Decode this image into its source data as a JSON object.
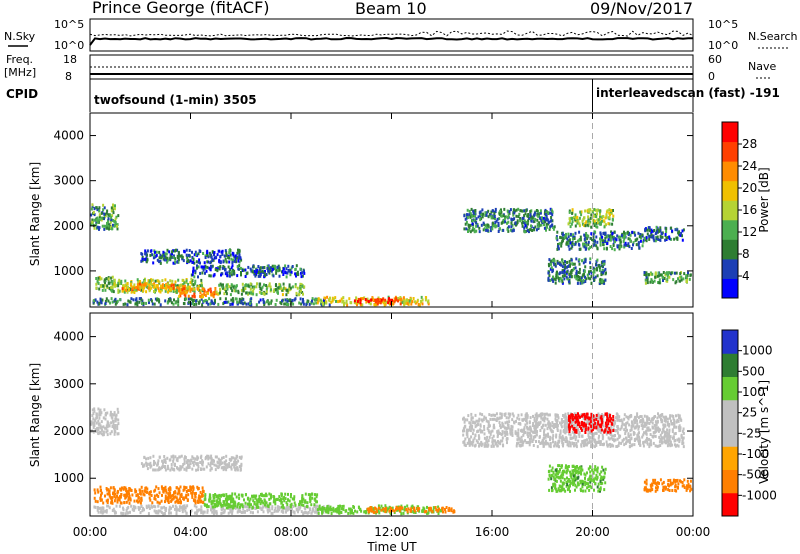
{
  "header": {
    "title": "Prince George (fitACF)",
    "beam": "Beam 10",
    "date": "09/Nov/2017"
  },
  "top_panels": {
    "nsky_label": "N.Sky",
    "nsearch_label": "N.Search",
    "count_ticks": [
      "10^5",
      "10^0"
    ],
    "freq_label": "Freq.",
    "freq_unit": "[MHz]",
    "freq_ticks": [
      "18",
      "8"
    ],
    "nave_label": "Nave",
    "nave_ticks": [
      "60",
      "0"
    ],
    "cpid_label": "CPID",
    "cpid_segments": [
      {
        "label": "twofsound (1-min) 3505",
        "start_hour": 0.0
      },
      {
        "label": "interleavedscan (fast) -191",
        "start_hour": 20.0
      }
    ]
  },
  "colors": {
    "power_scale": [
      "#0000ff",
      "#1c3fb5",
      "#2e7d32",
      "#4caf50",
      "#b5d334",
      "#f0c000",
      "#ff8c00",
      "#ff4000",
      "#ff0000"
    ],
    "velocity_scale": [
      "#2233cc",
      "#2e7d32",
      "#66cc33",
      "#c0c0c0",
      "#c0c0c0",
      "#ffa500",
      "#ff7f00",
      "#ff0000"
    ]
  },
  "chart_data": [
    {
      "type": "heatmap",
      "ylabel": "Slant Range [km]",
      "xlabel": "Time UT",
      "ylim": [
        200,
        4500
      ],
      "xlim": [
        0,
        24
      ],
      "y_ticks": [
        "4000",
        "3000",
        "2000",
        "1000"
      ],
      "x_ticks": [
        "00:00",
        "04:00",
        "08:00",
        "12:00",
        "16:00",
        "20:00",
        "00:00"
      ],
      "colorbar": {
        "label": "Power [dB]",
        "ticks": [
          "28",
          "24",
          "20",
          "16",
          "12",
          "8",
          "4"
        ],
        "range": [
          0,
          30
        ]
      },
      "regions": [
        {
          "t": [
            0.0,
            1.1
          ],
          "r": [
            1950,
            2500
          ],
          "v": 10
        },
        {
          "t": [
            0.2,
            1.0
          ],
          "r": [
            600,
            900
          ],
          "v": 12
        },
        {
          "t": [
            0.1,
            9.5
          ],
          "r": [
            280,
            420
          ],
          "v": 8
        },
        {
          "t": [
            0.8,
            4.5
          ],
          "r": [
            550,
            850
          ],
          "v": 14
        },
        {
          "t": [
            1.2,
            3.8
          ],
          "r": [
            600,
            750
          ],
          "v": 20
        },
        {
          "t": [
            3.5,
            5.0
          ],
          "r": [
            450,
            650
          ],
          "v": 22
        },
        {
          "t": [
            5.0,
            8.5
          ],
          "r": [
            500,
            750
          ],
          "v": 12
        },
        {
          "t": [
            2.0,
            6.0
          ],
          "r": [
            1200,
            1500
          ],
          "v": 6
        },
        {
          "t": [
            4.0,
            8.5
          ],
          "r": [
            900,
            1150
          ],
          "v": 6
        },
        {
          "t": [
            9.0,
            13.5
          ],
          "r": [
            280,
            450
          ],
          "v": 18
        },
        {
          "t": [
            10.5,
            12.5
          ],
          "r": [
            300,
            420
          ],
          "v": 26
        },
        {
          "t": [
            14.8,
            18.5
          ],
          "r": [
            1900,
            2400
          ],
          "v": 8
        },
        {
          "t": [
            18.5,
            22.0
          ],
          "r": [
            1500,
            1900
          ],
          "v": 8
        },
        {
          "t": [
            22.0,
            23.6
          ],
          "r": [
            1700,
            2000
          ],
          "v": 6
        },
        {
          "t": [
            19.0,
            20.8
          ],
          "r": [
            2000,
            2400
          ],
          "v": 14
        },
        {
          "t": [
            18.2,
            20.5
          ],
          "r": [
            750,
            1300
          ],
          "v": 8
        },
        {
          "t": [
            22.0,
            23.9
          ],
          "r": [
            750,
            1000
          ],
          "v": 10
        }
      ]
    },
    {
      "type": "heatmap",
      "ylabel": "Slant Range [km]",
      "xlabel": "Time UT",
      "ylim": [
        200,
        4500
      ],
      "xlim": [
        0,
        24
      ],
      "y_ticks": [
        "4000",
        "3000",
        "2000",
        "1000"
      ],
      "x_ticks": [
        "00:00",
        "04:00",
        "08:00",
        "12:00",
        "16:00",
        "20:00",
        "00:00"
      ],
      "colorbar": {
        "label": "Velocity [m s^-1]",
        "ticks": [
          "1000",
          "500",
          "100",
          "25",
          "-25",
          "-100",
          "-500",
          "-1000"
        ]
      },
      "regions": [
        {
          "t": [
            0.0,
            1.1
          ],
          "r": [
            1950,
            2500
          ],
          "v": 0
        },
        {
          "t": [
            0.1,
            4.5
          ],
          "r": [
            500,
            850
          ],
          "v": -300
        },
        {
          "t": [
            0.1,
            9.5
          ],
          "r": [
            280,
            450
          ],
          "v": 0
        },
        {
          "t": [
            4.5,
            9.0
          ],
          "r": [
            400,
            700
          ],
          "v": 60
        },
        {
          "t": [
            2.0,
            6.0
          ],
          "r": [
            1200,
            1500
          ],
          "v": 0
        },
        {
          "t": [
            9.0,
            14.0
          ],
          "r": [
            280,
            450
          ],
          "v": 40
        },
        {
          "t": [
            11.0,
            14.5
          ],
          "r": [
            300,
            420
          ],
          "v": -200
        },
        {
          "t": [
            14.8,
            23.6
          ],
          "r": [
            1700,
            2400
          ],
          "v": 0
        },
        {
          "t": [
            19.0,
            20.8
          ],
          "r": [
            2000,
            2400
          ],
          "v": -800
        },
        {
          "t": [
            18.2,
            20.5
          ],
          "r": [
            750,
            1300
          ],
          "v": 80
        },
        {
          "t": [
            22.0,
            23.9
          ],
          "r": [
            750,
            1000
          ],
          "v": -150
        }
      ]
    }
  ]
}
